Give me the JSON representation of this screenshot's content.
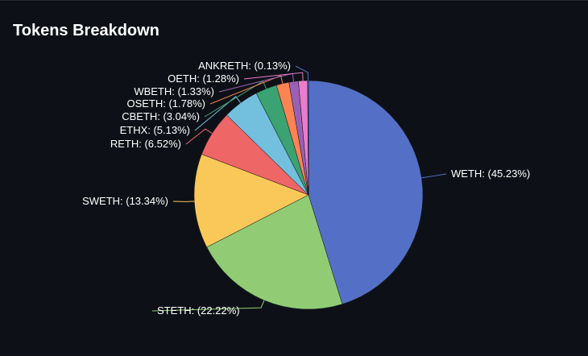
{
  "title": "Tokens Breakdown",
  "chart_data": {
    "type": "pie",
    "slices": [
      {
        "label": "WETH: (45.23%)",
        "value": 45.23,
        "color": "#5470c6"
      },
      {
        "label": "STETH: (22.22%)",
        "value": 22.22,
        "color": "#91cc75"
      },
      {
        "label": "SWETH: (13.34%)",
        "value": 13.34,
        "color": "#fac858"
      },
      {
        "label": "RETH: (6.52%)",
        "value": 6.52,
        "color": "#ee6666"
      },
      {
        "label": "ETHX: (5.13%)",
        "value": 5.13,
        "color": "#73c0de"
      },
      {
        "label": "CBETH: (3.04%)",
        "value": 3.04,
        "color": "#3ba272"
      },
      {
        "label": "OSETH: (1.78%)",
        "value": 1.78,
        "color": "#fc8452"
      },
      {
        "label": "WBETH: (1.33%)",
        "value": 1.33,
        "color": "#9a60b4"
      },
      {
        "label": "OETH: (1.28%)",
        "value": 1.28,
        "color": "#ea7ccc"
      },
      {
        "label": "ANKRETH: (0.13%)",
        "value": 0.13,
        "color": "#5470c6"
      }
    ]
  }
}
